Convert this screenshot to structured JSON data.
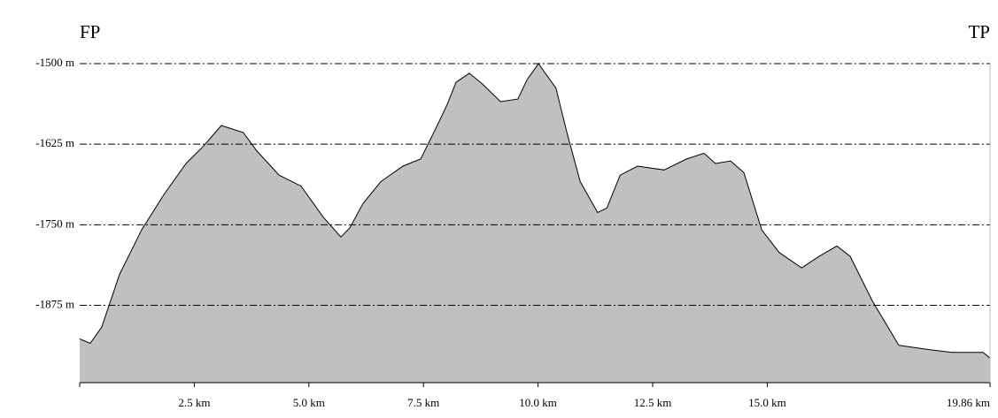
{
  "chart_data": {
    "type": "area",
    "start_label": "FP",
    "end_label": "TP",
    "x": [
      0,
      0.23,
      0.48,
      0.87,
      1.35,
      1.84,
      2.32,
      2.7,
      3.09,
      3.57,
      3.86,
      4.35,
      4.83,
      5.31,
      5.7,
      5.89,
      6.18,
      6.57,
      7.05,
      7.44,
      7.82,
      8.02,
      8.21,
      8.5,
      8.79,
      9.18,
      9.56,
      9.76,
      10.01,
      10.39,
      10.63,
      10.92,
      11.3,
      11.5,
      11.79,
      12.17,
      12.75,
      13.24,
      13.62,
      13.87,
      14.2,
      14.49,
      14.88,
      15.26,
      15.75,
      16.13,
      16.52,
      16.81,
      17.29,
      17.87,
      18.55,
      19.03,
      19.71,
      19.86
    ],
    "values": [
      -1927,
      -1934,
      -1909,
      -1827,
      -1758,
      -1703,
      -1655,
      -1628,
      -1596,
      -1607,
      -1635,
      -1673,
      -1690,
      -1738,
      -1769,
      -1755,
      -1717,
      -1683,
      -1659,
      -1648,
      -1593,
      -1563,
      -1529,
      -1515,
      -1532,
      -1559,
      -1555,
      -1525,
      -1500,
      -1538,
      -1607,
      -1683,
      -1731,
      -1724,
      -1673,
      -1659,
      -1665,
      -1648,
      -1639,
      -1655,
      -1651,
      -1669,
      -1758,
      -1793,
      -1817,
      -1799,
      -1783,
      -1799,
      -1868,
      -1937,
      -1944,
      -1948,
      -1948,
      -1957
    ],
    "color": "#c0c0c0",
    "line_color": "#000000",
    "xlim": [
      0,
      19.86
    ],
    "ylim": [
      -1995,
      -1500
    ],
    "xticks": [
      {
        "value": 2.5,
        "label": "2.5 km"
      },
      {
        "value": 5.0,
        "label": "5.0 km"
      },
      {
        "value": 7.5,
        "label": "7.5 km"
      },
      {
        "value": 10.0,
        "label": "10.0 km"
      },
      {
        "value": 12.5,
        "label": "12.5 km"
      },
      {
        "value": 15.0,
        "label": "15.0 km"
      },
      {
        "value": 19.86,
        "label": "19.86 km"
      }
    ],
    "yticks": [
      {
        "value": -1500,
        "label": "-1500 m"
      },
      {
        "value": -1625,
        "label": "-1625 m"
      },
      {
        "value": -1750,
        "label": "-1750 m"
      },
      {
        "value": -1875,
        "label": "-1875 m"
      }
    ],
    "grid": true
  }
}
